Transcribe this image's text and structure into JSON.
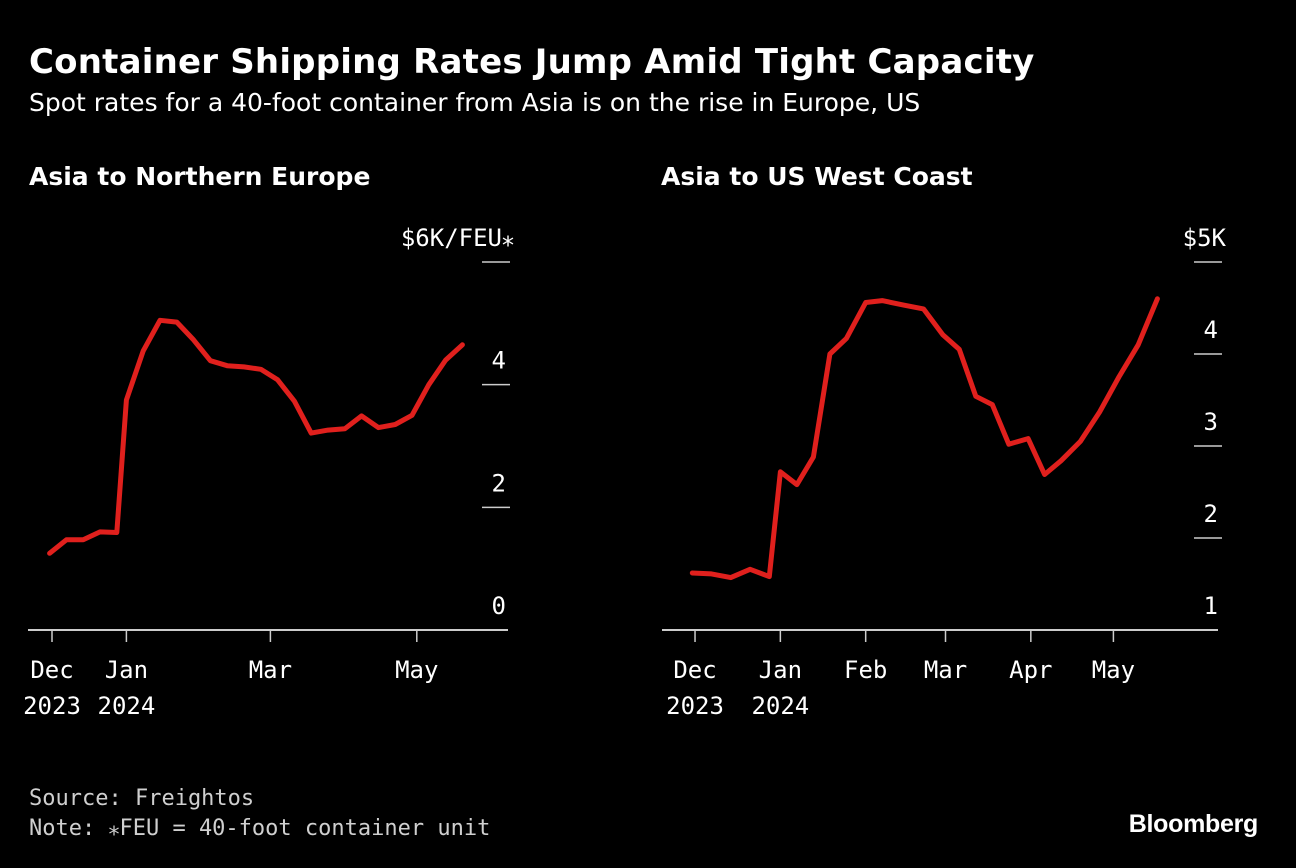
{
  "header": {
    "title": "Container Shipping Rates Jump Amid Tight Capacity",
    "subtitle": "Spot rates for a 40-foot container from Asia is on the rise in Europe, US"
  },
  "footer": {
    "source": "Source: Freightos",
    "note": "Note: ⁎FEU = 40-foot container unit",
    "logo": "Bloomberg"
  },
  "colors": {
    "background": "#000000",
    "line": "#e0201d",
    "text": "#ffffff",
    "axis": "#cccccc"
  },
  "chart_data": [
    {
      "type": "line",
      "title": "Asia to Northern Europe",
      "unit_label": "$6K/FEU⁎",
      "ylim": [
        0,
        6
      ],
      "y_ticks": [
        {
          "value": 6,
          "label": ""
        },
        {
          "value": 4,
          "label": "4"
        },
        {
          "value": 2,
          "label": "2"
        },
        {
          "value": 0,
          "label": "0"
        }
      ],
      "x_ticks": [
        {
          "date": "2023-12-01",
          "label": [
            "Dec",
            "2023"
          ]
        },
        {
          "date": "2024-01-01",
          "label": [
            "Jan",
            "2024"
          ]
        },
        {
          "date": "2024-03-01",
          "label": [
            "Mar",
            ""
          ]
        },
        {
          "date": "2024-05-01",
          "label": [
            "May",
            ""
          ]
        }
      ],
      "xlim": [
        "2023-11-21",
        "2024-06-08"
      ],
      "series": [
        {
          "x": [
            "2023-11-30",
            "2023-12-07",
            "2023-12-14",
            "2023-12-21",
            "2023-12-28",
            "2024-01-01",
            "2024-01-08",
            "2024-01-15",
            "2024-01-22",
            "2024-01-29",
            "2024-02-05",
            "2024-02-12",
            "2024-02-19",
            "2024-02-26",
            "2024-03-04",
            "2024-03-11",
            "2024-03-18",
            "2024-03-25",
            "2024-04-01",
            "2024-04-08",
            "2024-04-15",
            "2024-04-22",
            "2024-04-29",
            "2024-05-06",
            "2024-05-13",
            "2024-05-20"
          ],
          "values": [
            1.25,
            1.47,
            1.47,
            1.6,
            1.59,
            3.75,
            4.55,
            5.05,
            5.02,
            4.73,
            4.39,
            4.31,
            4.29,
            4.25,
            4.08,
            3.73,
            3.21,
            3.26,
            3.28,
            3.49,
            3.3,
            3.35,
            3.5,
            4.0,
            4.4,
            4.65
          ]
        }
      ]
    },
    {
      "type": "line",
      "title": "Asia to US West Coast",
      "unit_label": "$5K",
      "ylim": [
        1,
        5
      ],
      "y_ticks": [
        {
          "value": 5,
          "label": ""
        },
        {
          "value": 4,
          "label": "4"
        },
        {
          "value": 3,
          "label": "3"
        },
        {
          "value": 2,
          "label": "2"
        },
        {
          "value": 1,
          "label": "1"
        }
      ],
      "x_ticks": [
        {
          "date": "2023-12-01",
          "label": [
            "Dec",
            "2023"
          ]
        },
        {
          "date": "2024-01-01",
          "label": [
            "Jan",
            "2024"
          ]
        },
        {
          "date": "2024-02-01",
          "label": [
            "Feb",
            ""
          ]
        },
        {
          "date": "2024-03-01",
          "label": [
            "Mar",
            ""
          ]
        },
        {
          "date": "2024-04-01",
          "label": [
            "Apr",
            ""
          ]
        },
        {
          "date": "2024-05-01",
          "label": [
            "May",
            ""
          ]
        }
      ],
      "xlim": [
        "2023-11-19",
        "2024-06-08"
      ],
      "series": [
        {
          "x": [
            "2023-11-30",
            "2023-12-07",
            "2023-12-14",
            "2023-12-21",
            "2023-12-28",
            "2024-01-01",
            "2024-01-07",
            "2024-01-13",
            "2024-01-19",
            "2024-01-25",
            "2024-02-01",
            "2024-02-07",
            "2024-02-15",
            "2024-02-22",
            "2024-02-29",
            "2024-03-06",
            "2024-03-12",
            "2024-03-18",
            "2024-03-24",
            "2024-03-31",
            "2024-04-06",
            "2024-04-12",
            "2024-04-19",
            "2024-04-26",
            "2024-05-03",
            "2024-05-10",
            "2024-05-17"
          ],
          "values": [
            1.62,
            1.61,
            1.57,
            1.66,
            1.58,
            2.72,
            2.58,
            2.88,
            4.0,
            4.17,
            4.56,
            4.58,
            4.53,
            4.49,
            4.21,
            4.05,
            3.54,
            3.45,
            3.02,
            3.08,
            2.69,
            2.84,
            3.05,
            3.37,
            3.75,
            4.1,
            4.6
          ]
        }
      ]
    }
  ]
}
